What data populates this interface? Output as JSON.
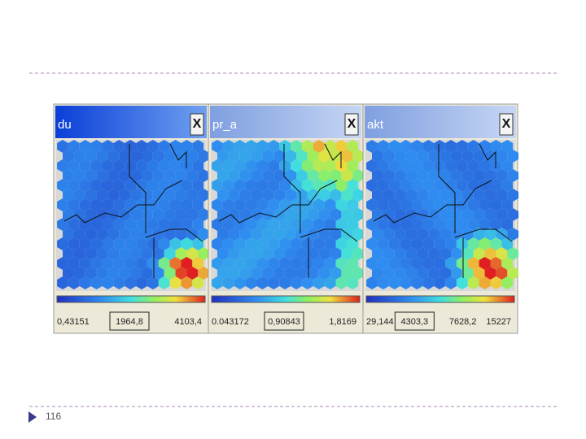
{
  "panels": [
    {
      "title": "du",
      "close": "X",
      "scale_labels": [
        "0,43151",
        "1964,8",
        "4103,4"
      ]
    },
    {
      "title": "pr_a",
      "close": "X",
      "scale_labels": [
        "0.043172",
        "0,90843",
        "1,8169"
      ]
    },
    {
      "title": "akt",
      "close": "X",
      "scale_labels": [
        "29,144",
        "4303,3",
        "7628,2",
        "15227"
      ]
    }
  ],
  "footer": {
    "page_number": "116"
  }
}
